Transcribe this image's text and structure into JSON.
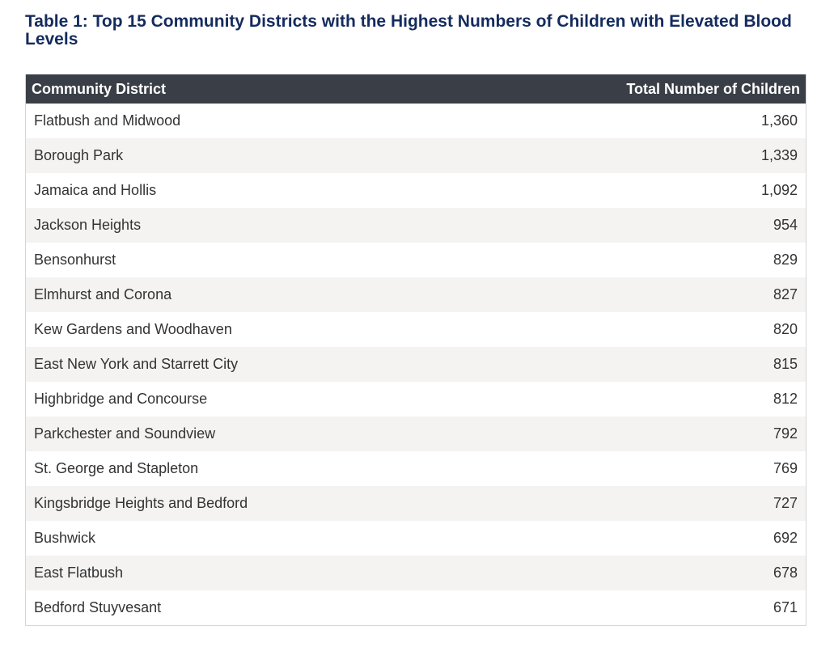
{
  "chart_data": {
    "type": "table",
    "title": "Table 1: Top 15 Community Districts with the Highest Numbers of Children with Elevated Blood Levels",
    "columns": [
      "Community District",
      "Total Number of Children"
    ],
    "rows": [
      {
        "district": "Flatbush and Midwood",
        "count": "1,360"
      },
      {
        "district": "Borough Park",
        "count": "1,339"
      },
      {
        "district": "Jamaica and Hollis",
        "count": "1,092"
      },
      {
        "district": "Jackson Heights",
        "count": "954"
      },
      {
        "district": "Bensonhurst",
        "count": "829"
      },
      {
        "district": "Elmhurst and Corona",
        "count": "827"
      },
      {
        "district": "Kew Gardens and Woodhaven",
        "count": "820"
      },
      {
        "district": "East New York and Starrett City",
        "count": "815"
      },
      {
        "district": "Highbridge and Concourse",
        "count": "812"
      },
      {
        "district": "Parkchester and Soundview",
        "count": "792"
      },
      {
        "district": "St. George and Stapleton",
        "count": "769"
      },
      {
        "district": "Kingsbridge Heights and Bedford",
        "count": "727"
      },
      {
        "district": "Bushwick",
        "count": "692"
      },
      {
        "district": "East Flatbush",
        "count": "678"
      },
      {
        "district": "Bedford Stuyvesant",
        "count": "671"
      }
    ],
    "colors": {
      "title": "#142b5e",
      "header_background": "#3a3f47",
      "header_text": "#ffffff",
      "row_alt_background": "#f4f3f2",
      "cell_text": "#333333"
    }
  }
}
